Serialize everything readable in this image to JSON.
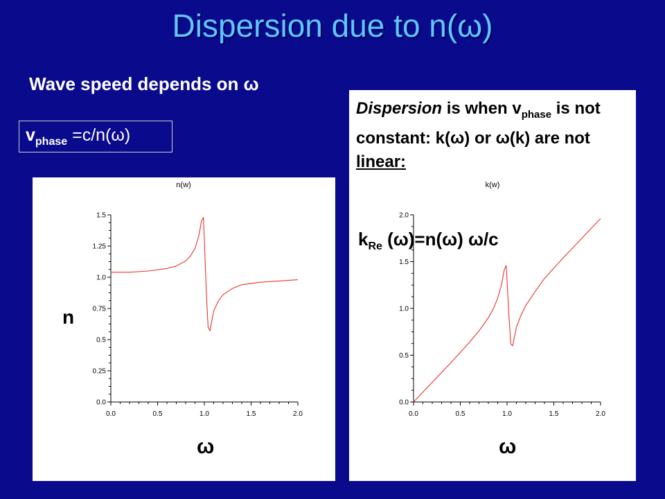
{
  "slide": {
    "title": "Dispersion due to n(ω)",
    "subtitle": "Wave speed depends on ω",
    "vphase": {
      "v": "v",
      "sub": "phase",
      "rest": " =c/n(ω)"
    },
    "definition": {
      "word": "Dispersion",
      "part1": " is when v",
      "sub": "phase",
      "part2": " is not constant: k(ω) or ω(k) are not ",
      "underlined": "linear:"
    },
    "krel": {
      "k": "k",
      "sub": "Re",
      "rest": " (ω)=n(ω) ω/c"
    },
    "n_label": "n",
    "omega_left": "ω",
    "omega_right": "ω"
  },
  "chart_data": [
    {
      "type": "line",
      "title": "n(w)",
      "xlabel": "ω",
      "ylabel": "n",
      "xlim": [
        0,
        2
      ],
      "ylim": [
        0,
        1.5
      ],
      "xticks": [
        "0.0",
        "0.5",
        "1.0",
        "1.5",
        "2.0"
      ],
      "yticks": [
        "0.0",
        "0.25",
        "0.5",
        "0.75",
        "1.0",
        "1.25",
        "1.5"
      ],
      "color": "#e8322b",
      "x": [
        0.0,
        0.2,
        0.4,
        0.6,
        0.7,
        0.8,
        0.85,
        0.9,
        0.94,
        0.97,
        0.99,
        1.0,
        1.02,
        1.04,
        1.06,
        1.08,
        1.1,
        1.15,
        1.2,
        1.3,
        1.4,
        1.6,
        1.8,
        2.0
      ],
      "y": [
        1.04,
        1.04,
        1.05,
        1.07,
        1.09,
        1.13,
        1.17,
        1.23,
        1.33,
        1.45,
        1.48,
        1.3,
        0.9,
        0.6,
        0.57,
        0.65,
        0.73,
        0.81,
        0.86,
        0.91,
        0.94,
        0.96,
        0.97,
        0.98
      ]
    },
    {
      "type": "line",
      "title": "k(w)",
      "xlabel": "ω",
      "ylabel": "",
      "xlim": [
        0,
        2
      ],
      "ylim": [
        0,
        2
      ],
      "xticks": [
        "0.0",
        "0.5",
        "1.0",
        "1.5",
        "2.0"
      ],
      "yticks": [
        "0.0",
        "0.5",
        "1.0",
        "1.5",
        "2.0"
      ],
      "color": "#e8322b",
      "x": [
        0.0,
        0.2,
        0.4,
        0.6,
        0.7,
        0.8,
        0.85,
        0.9,
        0.94,
        0.97,
        0.99,
        1.0,
        1.02,
        1.04,
        1.06,
        1.08,
        1.1,
        1.15,
        1.2,
        1.3,
        1.4,
        1.6,
        1.8,
        2.0
      ],
      "y": [
        0.0,
        0.21,
        0.42,
        0.64,
        0.76,
        0.9,
        0.99,
        1.11,
        1.25,
        1.41,
        1.46,
        1.3,
        0.92,
        0.62,
        0.6,
        0.7,
        0.8,
        0.93,
        1.03,
        1.18,
        1.32,
        1.54,
        1.75,
        1.96
      ]
    }
  ]
}
